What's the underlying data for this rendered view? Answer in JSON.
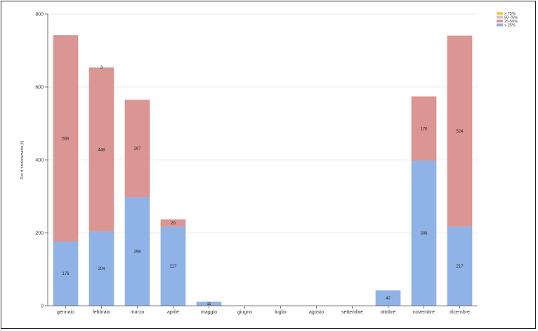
{
  "chart_data": {
    "type": "bar",
    "stacked": true,
    "title": "",
    "xlabel": "",
    "ylabel": "Ore di funzionamento [h]",
    "ylim": [
      0,
      800
    ],
    "yticks": [
      0,
      200,
      400,
      600,
      800
    ],
    "grid": true,
    "legend_position": "top-right",
    "categories": [
      "gennaio",
      "febbraio",
      "marzo",
      "aprile",
      "maggio",
      "giugno",
      "luglio",
      "agosto",
      "settembre",
      "ottobre",
      "novembre",
      "dicembre"
    ],
    "series": [
      {
        "name": "< 25%",
        "color": "#8fb3e6",
        "values": [
          176,
          204,
          298,
          217,
          11,
          0,
          0,
          0,
          0,
          42,
          398,
          217
        ]
      },
      {
        "name": "25-50%",
        "color": "#db9592",
        "values": [
          566,
          448,
          267,
          20,
          0,
          0,
          0,
          0,
          0,
          0,
          176,
          524
        ]
      },
      {
        "name": "50-75%",
        "color": "#c8c8c8",
        "values": [
          0,
          3,
          0,
          0,
          0,
          0,
          0,
          0,
          0,
          0,
          0,
          0
        ]
      },
      {
        "name": "> 75%",
        "color": "#f6c860",
        "values": [
          0,
          0,
          0,
          0,
          0,
          0,
          0,
          0,
          0,
          0,
          0,
          0
        ]
      }
    ],
    "legend_order": [
      "> 75%",
      "50-75%",
      "25-50%",
      "< 25%"
    ]
  }
}
